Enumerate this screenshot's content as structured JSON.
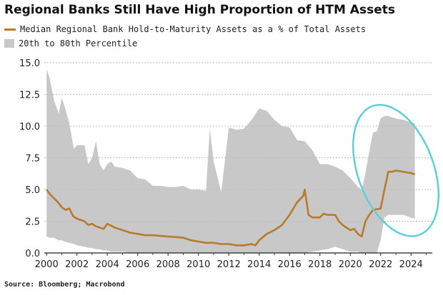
{
  "chart_data": {
    "type": "area",
    "title": "Regional Banks Still Have High Proportion of HTM Assets",
    "source": "Source: Bloomberg; Macrobond",
    "xlabel": "",
    "ylabel": "",
    "xlim": [
      1999.85,
      2025.4
    ],
    "ylim": [
      0,
      15
    ],
    "x_ticks": [
      "2000",
      "2002",
      "2004",
      "2006",
      "2008",
      "2010",
      "2012",
      "2014",
      "2016",
      "2018",
      "2020",
      "2022",
      "2024"
    ],
    "y_ticks": [
      "0.0",
      "2.5",
      "5.0",
      "7.5",
      "10.0",
      "12.5",
      "15.0"
    ],
    "grid": "horizontal",
    "legend_position": "top-left",
    "colors": {
      "median": "#b87a2e",
      "band": "#c8c8c8",
      "highlight_ellipse": "#5fd0d8"
    },
    "series": [
      {
        "name": "Median Regional Bank Hold-to-Maturity Assets as a % of Total Assets",
        "type": "line",
        "x": [
          2000.0,
          2000.25,
          2000.5,
          2000.75,
          2001.0,
          2001.25,
          2001.5,
          2001.75,
          2002.0,
          2002.5,
          2002.75,
          2003.0,
          2003.25,
          2003.5,
          2003.75,
          2004.0,
          2004.5,
          2005.0,
          2005.5,
          2006.0,
          2006.5,
          2007.0,
          2008.0,
          2009.0,
          2009.5,
          2010.0,
          2010.5,
          2011.0,
          2011.5,
          2012.0,
          2012.5,
          2013.0,
          2013.5,
          2013.75,
          2014.0,
          2014.5,
          2015.0,
          2015.5,
          2016.0,
          2016.5,
          2016.9,
          2017.0,
          2017.25,
          2017.5,
          2018.0,
          2018.25,
          2018.5,
          2019.0,
          2019.25,
          2019.5,
          2020.0,
          2020.25,
          2020.5,
          2020.75,
          2021.0,
          2021.25,
          2021.5,
          2022.0,
          2022.25,
          2022.5,
          2022.75,
          2023.0,
          2023.5,
          2024.0,
          2024.25
        ],
        "values": [
          5.0,
          4.6,
          4.3,
          4.0,
          3.6,
          3.4,
          3.5,
          2.9,
          2.7,
          2.5,
          2.2,
          2.3,
          2.1,
          2.0,
          1.9,
          2.3,
          2.0,
          1.8,
          1.6,
          1.5,
          1.4,
          1.4,
          1.3,
          1.2,
          1.0,
          0.9,
          0.8,
          0.8,
          0.7,
          0.7,
          0.6,
          0.6,
          0.7,
          0.6,
          1.0,
          1.5,
          1.8,
          2.2,
          3.0,
          4.0,
          4.5,
          5.0,
          3.0,
          2.8,
          2.8,
          3.1,
          3.0,
          3.0,
          2.5,
          2.2,
          1.8,
          1.9,
          1.5,
          1.3,
          2.5,
          3.0,
          3.4,
          3.5,
          5.0,
          6.4,
          6.4,
          6.5,
          6.4,
          6.3,
          6.2
        ]
      },
      {
        "name": "20th to 80th Percentile",
        "type": "band",
        "x": [
          2000.0,
          2000.2,
          2000.5,
          2000.8,
          2001.0,
          2001.2,
          2001.5,
          2001.8,
          2002.0,
          2002.5,
          2002.75,
          2003.0,
          2003.25,
          2003.5,
          2003.75,
          2004.0,
          2004.25,
          2004.5,
          2005.0,
          2005.5,
          2006.0,
          2006.5,
          2007.0,
          2007.5,
          2008.0,
          2008.5,
          2009.0,
          2009.5,
          2010.0,
          2010.5,
          2010.75,
          2011.0,
          2011.25,
          2011.5,
          2012.0,
          2012.5,
          2013.0,
          2013.5,
          2014.0,
          2014.5,
          2015.0,
          2015.5,
          2016.0,
          2016.5,
          2017.0,
          2017.5,
          2018.0,
          2018.5,
          2019.0,
          2019.5,
          2020.0,
          2020.5,
          2020.75,
          2021.0,
          2021.25,
          2021.5,
          2021.75,
          2022.0,
          2022.25,
          2022.5,
          2023.0,
          2023.5,
          2024.0,
          2024.25
        ],
        "upper": [
          14.5,
          13.8,
          12.0,
          11.0,
          12.2,
          11.5,
          10.2,
          8.2,
          8.5,
          8.5,
          7.0,
          7.5,
          8.8,
          7.0,
          6.5,
          7.0,
          7.2,
          6.8,
          6.7,
          6.5,
          5.9,
          5.8,
          5.3,
          5.3,
          5.2,
          5.2,
          5.3,
          5.0,
          5.0,
          4.9,
          9.8,
          7.2,
          6.0,
          4.8,
          9.9,
          9.7,
          9.8,
          10.5,
          11.4,
          11.2,
          10.5,
          10.0,
          9.9,
          8.9,
          8.8,
          8.1,
          7.0,
          7.0,
          6.8,
          6.5,
          5.9,
          5.2,
          5.0,
          6.3,
          8.0,
          9.5,
          9.6,
          10.6,
          10.8,
          10.8,
          10.6,
          10.5,
          10.3,
          10.2
        ],
        "lower": [
          1.3,
          1.2,
          1.2,
          1.0,
          1.0,
          0.9,
          0.8,
          0.7,
          0.6,
          0.5,
          0.4,
          0.4,
          0.3,
          0.3,
          0.2,
          0.2,
          0.1,
          0.1,
          0.1,
          0.0,
          0.0,
          0.0,
          0.0,
          0.0,
          0.0,
          0.0,
          0.0,
          0.0,
          0.0,
          0.0,
          0.0,
          0.0,
          0.0,
          0.0,
          0.0,
          0.0,
          0.0,
          0.0,
          0.0,
          0.0,
          0.0,
          0.0,
          0.0,
          0.0,
          0.0,
          0.1,
          0.2,
          0.3,
          0.5,
          0.3,
          0.1,
          0.1,
          0.0,
          0.0,
          0.0,
          0.0,
          0.0,
          1.0,
          2.8,
          3.0,
          3.0,
          3.0,
          2.8,
          2.7
        ]
      }
    ],
    "annotations": [
      {
        "type": "ellipse",
        "center": [
          2023.0,
          6.5
        ],
        "radius_x": 2.5,
        "radius_y": 5.4,
        "rotation": -20
      }
    ]
  }
}
